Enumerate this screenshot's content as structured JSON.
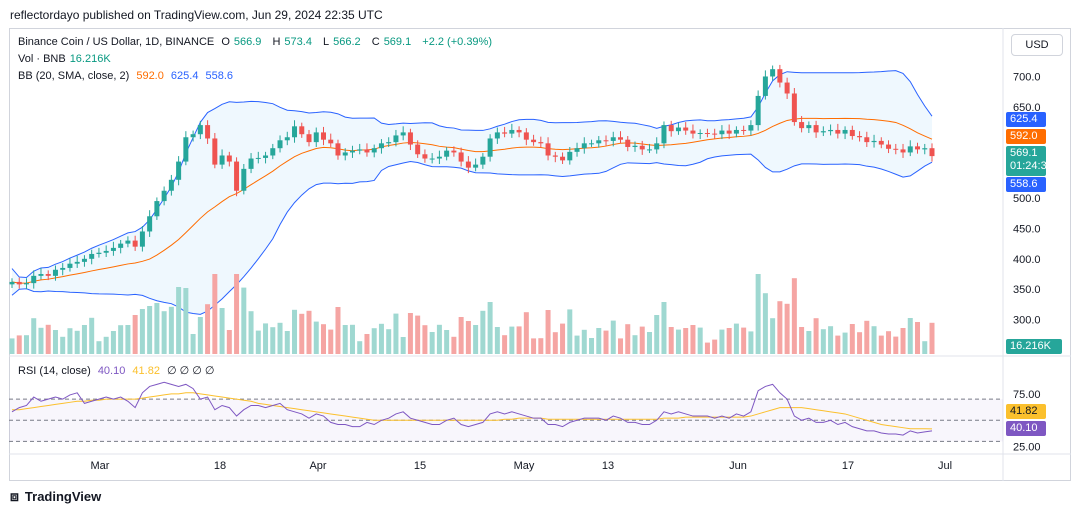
{
  "header": {
    "text": "reflectordayo published on TradingView.com, Jun 29, 2024 22:35 UTC"
  },
  "legend": {
    "title": "Binance Coin / US Dollar, 1D, BINANCE",
    "o_label": "O",
    "o": "566.9",
    "h_label": "H",
    "h": "573.4",
    "l_label": "L",
    "l": "566.2",
    "c_label": "C",
    "c": "569.1",
    "chg": "+2.2 (+0.39%)",
    "vol_label": "Vol · BNB",
    "vol": "16.216K",
    "bb_label": "BB (20, SMA, close, 2)",
    "bb_mid": "592.0",
    "bb_up": "625.4",
    "bb_low": "558.6",
    "rsi_label": "RSI (14, close)",
    "rsi": "40.10",
    "rsi_ma": "41.82",
    "rsi_zeros": "∅ ∅ ∅ ∅"
  },
  "price_tags": {
    "bb_up": "625.4",
    "bb_mid": "592.0",
    "last": "569.1",
    "timer": "01:24:37",
    "bb_low": "558.6",
    "vol": "16.216K",
    "rsi_ma": "41.82",
    "rsi": "40.10"
  },
  "currency_button": "USD",
  "footer": {
    "brand": "TradingView"
  },
  "colors": {
    "up": "#26a69a",
    "down": "#ef5350",
    "vol_up": "#9fd8d1",
    "vol_down": "#f5a5a3",
    "bb_band": "#2962ff",
    "bb_mid": "#ff6d00",
    "rsi": "#7e57c2",
    "rsi_ma": "#fbc02d"
  },
  "chart_data": {
    "type": "candlestick",
    "ylim": [
      250,
      760
    ],
    "price_ticks": [
      300,
      350,
      400,
      450,
      500,
      550,
      600,
      650,
      700
    ],
    "price_tick_labels": [
      "300.0",
      "350.0",
      "400.0",
      "450.0",
      "500.0",
      "",
      "",
      "650.0",
      "700.0"
    ],
    "x_labels": [
      "Mar",
      "18",
      "Apr",
      "15",
      "May",
      "13",
      "Jun",
      "17",
      "Jul"
    ],
    "rsi_ticks": [
      "75.00",
      "25.00"
    ],
    "closes": [
      362,
      358,
      360,
      372,
      375,
      372,
      382,
      385,
      392,
      395,
      400,
      408,
      410,
      413,
      418,
      425,
      430,
      420,
      445,
      470,
      495,
      512,
      530,
      560,
      600,
      605,
      620,
      598,
      555,
      570,
      560,
      512,
      548,
      565,
      566,
      570,
      582,
      595,
      600,
      618,
      605,
      592,
      608,
      596,
      590,
      570,
      575,
      578,
      580,
      575,
      582,
      590,
      592,
      603,
      608,
      588,
      572,
      565,
      565,
      568,
      578,
      575,
      560,
      550,
      555,
      568,
      598,
      608,
      606,
      612,
      608,
      596,
      592,
      590,
      570,
      568,
      562,
      576,
      582,
      590,
      590,
      595,
      594,
      600,
      596,
      584,
      586,
      580,
      580,
      590,
      620,
      610,
      616,
      611,
      606,
      607,
      606,
      605,
      611,
      606,
      612,
      611,
      620,
      668,
      700,
      712,
      690,
      672,
      625,
      615,
      620,
      608,
      610,
      612,
      606,
      612,
      602,
      600,
      592,
      594,
      588,
      581,
      580,
      575,
      585,
      580,
      582,
      569
    ],
    "rsi": [
      58,
      62,
      64,
      72,
      68,
      70,
      72,
      70,
      74,
      76,
      66,
      68,
      70,
      72,
      70,
      72,
      68,
      62,
      76,
      82,
      84,
      86,
      84,
      82,
      84,
      80,
      70,
      72,
      60,
      64,
      62,
      54,
      60,
      64,
      64,
      62,
      64,
      66,
      60,
      58,
      56,
      52,
      56,
      54,
      48,
      46,
      46,
      44,
      44,
      48,
      46,
      50,
      52,
      56,
      58,
      52,
      50,
      48,
      46,
      46,
      50,
      52,
      46,
      44,
      46,
      48,
      56,
      58,
      56,
      58,
      56,
      54,
      52,
      52,
      46,
      46,
      44,
      48,
      50,
      52,
      52,
      52,
      50,
      54,
      52,
      48,
      48,
      46,
      46,
      50,
      58,
      56,
      58,
      56,
      54,
      54,
      54,
      52,
      54,
      52,
      56,
      54,
      58,
      78,
      82,
      84,
      76,
      70,
      54,
      50,
      52,
      48,
      48,
      50,
      46,
      48,
      44,
      42,
      40,
      40,
      38,
      37,
      37,
      36,
      40,
      38,
      39,
      40
    ],
    "rsi_ma": [
      60,
      60,
      61,
      62,
      63,
      64,
      65,
      66,
      67,
      68,
      68,
      69,
      69,
      70,
      70,
      70,
      70,
      70,
      71,
      72,
      73,
      74,
      75,
      75,
      76,
      76,
      75,
      74,
      73,
      72,
      71,
      70,
      69,
      68,
      66,
      65,
      64,
      63,
      62,
      61,
      60,
      59,
      58,
      57,
      56,
      55,
      54,
      53,
      52,
      51,
      50,
      50,
      50,
      50,
      50,
      50,
      50,
      50,
      50,
      50,
      50,
      50,
      50,
      50,
      50,
      50,
      50,
      50,
      51,
      51,
      52,
      52,
      52,
      52,
      51,
      51,
      51,
      51,
      51,
      51,
      51,
      51,
      51,
      51,
      51,
      51,
      51,
      51,
      51,
      51,
      52,
      52,
      52,
      53,
      53,
      53,
      53,
      53,
      53,
      53,
      53,
      53,
      54,
      56,
      58,
      60,
      62,
      62,
      62,
      62,
      61,
      60,
      59,
      58,
      57,
      56,
      54,
      52,
      50,
      48,
      46,
      45,
      44,
      43,
      42,
      42,
      42,
      41.82
    ]
  }
}
